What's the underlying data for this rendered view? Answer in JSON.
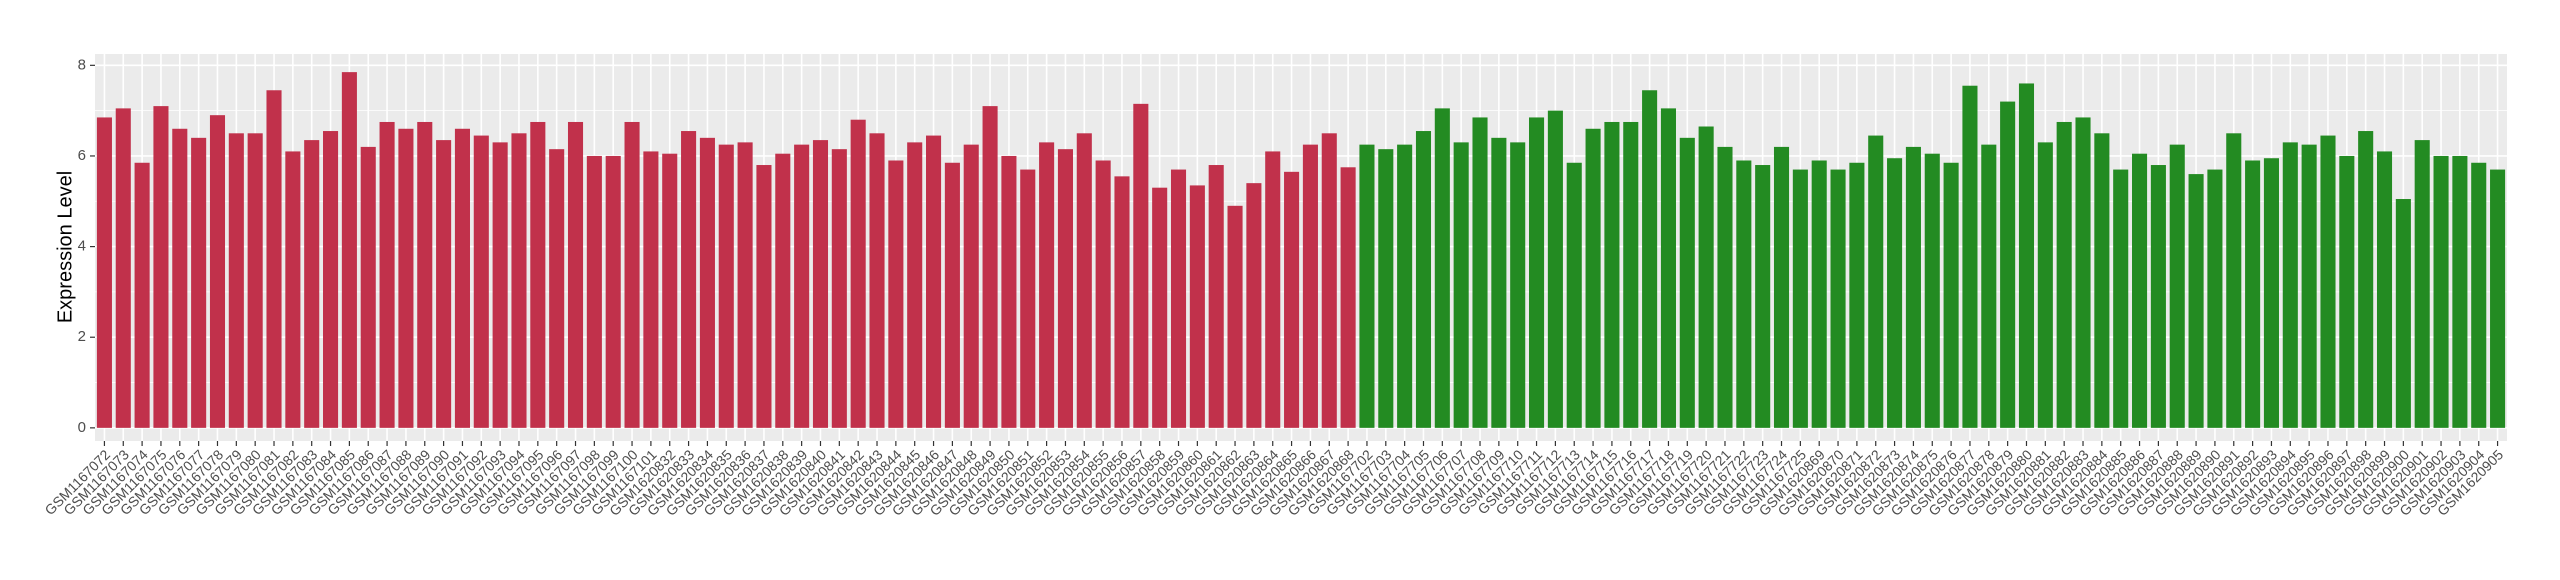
{
  "chart_data": {
    "type": "bar",
    "y_label": "Expression Level",
    "ylim": [
      -0.29,
      8.25
    ],
    "yticks": [
      0,
      2,
      4,
      6,
      8
    ],
    "grid": true,
    "categories": [
      "GSM1167072",
      "GSM1167073",
      "GSM1167074",
      "GSM1167075",
      "GSM1167076",
      "GSM1167077",
      "GSM1167078",
      "GSM1167079",
      "GSM1167080",
      "GSM1167081",
      "GSM1167082",
      "GSM1167083",
      "GSM1167084",
      "GSM1167085",
      "GSM1167086",
      "GSM1167087",
      "GSM1167088",
      "GSM1167089",
      "GSM1167090",
      "GSM1167091",
      "GSM1167092",
      "GSM1167093",
      "GSM1167094",
      "GSM1167095",
      "GSM1167096",
      "GSM1167097",
      "GSM1167098",
      "GSM1167099",
      "GSM1167100",
      "GSM1167101",
      "GSM1620832",
      "GSM1620833",
      "GSM1620834",
      "GSM1620835",
      "GSM1620836",
      "GSM1620837",
      "GSM1620838",
      "GSM1620839",
      "GSM1620840",
      "GSM1620841",
      "GSM1620842",
      "GSM1620843",
      "GSM1620844",
      "GSM1620845",
      "GSM1620846",
      "GSM1620847",
      "GSM1620848",
      "GSM1620849",
      "GSM1620850",
      "GSM1620851",
      "GSM1620852",
      "GSM1620853",
      "GSM1620854",
      "GSM1620855",
      "GSM1620856",
      "GSM1620857",
      "GSM1620858",
      "GSM1620859",
      "GSM1620860",
      "GSM1620861",
      "GSM1620862",
      "GSM1620863",
      "GSM1620864",
      "GSM1620865",
      "GSM1620866",
      "GSM1620867",
      "GSM1620868",
      "GSM1167702",
      "GSM1167703",
      "GSM1167704",
      "GSM1167705",
      "GSM1167706",
      "GSM1167707",
      "GSM1167708",
      "GSM1167709",
      "GSM1167710",
      "GSM1167711",
      "GSM1167712",
      "GSM1167713",
      "GSM1167714",
      "GSM1167715",
      "GSM1167716",
      "GSM1167717",
      "GSM1167718",
      "GSM1167719",
      "GSM1167720",
      "GSM1167721",
      "GSM1167722",
      "GSM1167723",
      "GSM1167724",
      "GSM1167725",
      "GSM1620869",
      "GSM1620870",
      "GSM1620871",
      "GSM1620872",
      "GSM1620873",
      "GSM1620874",
      "GSM1620875",
      "GSM1620876",
      "GSM1620877",
      "GSM1620878",
      "GSM1620879",
      "GSM1620880",
      "GSM1620881",
      "GSM1620882",
      "GSM1620883",
      "GSM1620884",
      "GSM1620885",
      "GSM1620886",
      "GSM1620887",
      "GSM1620888",
      "GSM1620889",
      "GSM1620890",
      "GSM1620891",
      "GSM1620892",
      "GSM1620893",
      "GSM1620894",
      "GSM1620895",
      "GSM1620896",
      "GSM1620897",
      "GSM1620898",
      "GSM1620899",
      "GSM1620900",
      "GSM1620901",
      "GSM1620902",
      "GSM1620903",
      "GSM1620904",
      "GSM1620905"
    ],
    "series": [
      {
        "color": "#c1314b",
        "values": [
          6.85,
          7.05,
          5.85,
          7.1,
          6.6,
          6.4,
          6.9,
          6.5,
          6.5,
          7.45,
          6.1,
          6.35,
          6.55,
          7.85,
          6.2,
          6.75,
          6.6,
          6.75,
          6.35,
          6.6,
          6.45,
          6.3,
          6.5,
          6.75,
          6.15,
          6.75,
          6.0,
          6.0,
          6.75,
          6.1,
          6.05,
          6.55,
          6.4,
          6.25,
          6.3,
          5.8,
          6.05,
          6.25,
          6.35,
          6.15,
          6.8,
          6.5,
          5.9,
          6.3,
          6.45,
          5.85,
          6.25,
          7.1,
          6.0,
          5.7,
          6.3,
          6.15,
          6.5,
          5.9,
          5.55,
          7.15,
          5.3,
          5.7,
          5.35,
          5.8,
          4.9,
          5.4,
          6.1,
          5.65,
          6.25,
          6.5,
          5.75,
          null,
          null,
          null,
          null,
          null,
          null,
          null,
          null,
          null,
          null,
          null,
          null,
          null,
          null,
          null,
          null,
          null,
          null,
          null,
          null,
          null,
          null,
          null,
          null,
          null,
          null,
          null,
          null,
          null,
          null,
          null,
          null,
          null,
          null,
          null,
          null,
          null,
          null,
          null,
          null,
          null,
          null,
          null,
          null,
          null,
          null,
          null,
          null,
          null,
          null,
          null,
          null,
          null,
          null,
          null,
          null,
          null,
          null,
          null,
          null,
          null
        ]
      },
      {
        "color": "#238b22",
        "values": [
          null,
          null,
          null,
          null,
          null,
          null,
          null,
          null,
          null,
          null,
          null,
          null,
          null,
          null,
          null,
          null,
          null,
          null,
          null,
          null,
          null,
          null,
          null,
          null,
          null,
          null,
          null,
          null,
          null,
          null,
          null,
          null,
          null,
          null,
          null,
          null,
          null,
          null,
          null,
          null,
          null,
          null,
          null,
          null,
          null,
          null,
          null,
          null,
          null,
          null,
          null,
          null,
          null,
          null,
          null,
          null,
          null,
          null,
          null,
          null,
          null,
          null,
          null,
          null,
          null,
          null,
          null,
          6.25,
          6.15,
          6.25,
          6.55,
          7.05,
          6.3,
          6.85,
          6.4,
          6.3,
          6.85,
          7.0,
          5.85,
          6.6,
          6.75,
          6.75,
          7.45,
          7.05,
          6.4,
          6.65,
          6.2,
          5.9,
          5.8,
          6.2,
          5.7,
          5.9,
          5.7,
          5.85,
          6.45,
          5.95,
          6.2,
          6.05,
          5.85,
          7.55,
          6.25,
          7.2,
          7.6,
          6.3,
          6.75,
          6.85,
          6.5,
          5.7,
          6.05,
          5.8,
          6.25,
          5.6,
          5.7,
          6.5,
          5.9,
          5.95,
          6.3,
          6.25,
          6.45,
          6.0,
          6.55,
          6.1,
          5.05,
          6.35,
          6.0,
          6.0,
          5.85,
          5.7
        ]
      }
    ]
  }
}
